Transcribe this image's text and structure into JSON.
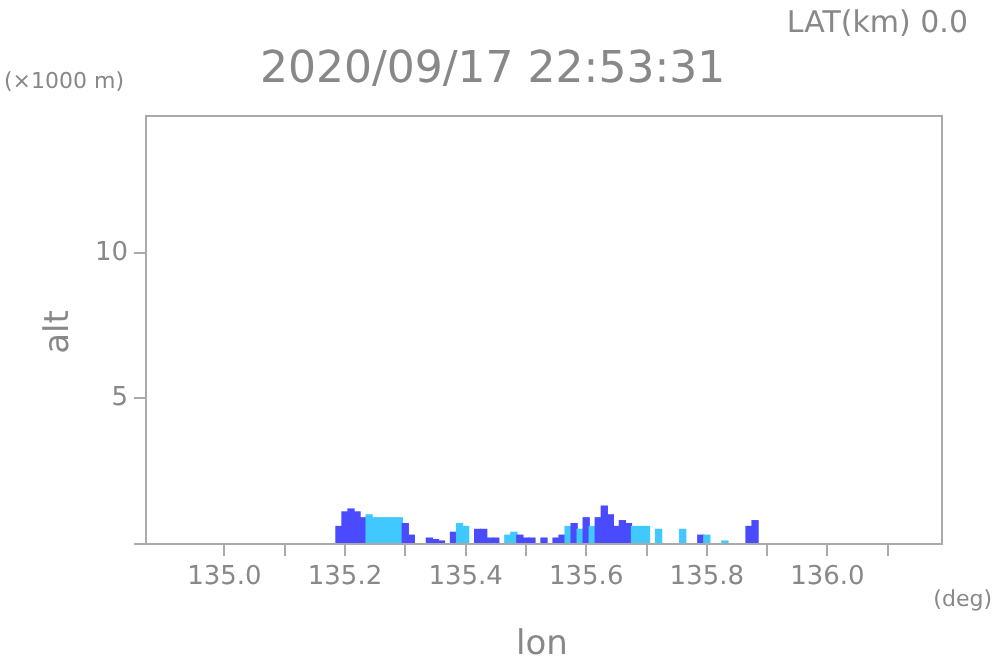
{
  "chart_data": {
    "type": "bar",
    "title": "2020/09/17 22:53:31",
    "subtitle": "LAT(km) 0.0",
    "xlabel": "lon",
    "ylabel": "alt",
    "annotations": [
      "(×1000 m)",
      "(deg)"
    ],
    "x": [
      135.19,
      135.2,
      135.21,
      135.22,
      135.23,
      135.24,
      135.25,
      135.26,
      135.27,
      135.28,
      135.29,
      135.3,
      135.31,
      135.34,
      135.35,
      135.36,
      135.38,
      135.39,
      135.4,
      135.42,
      135.43,
      135.44,
      135.45,
      135.47,
      135.48,
      135.49,
      135.5,
      135.51,
      135.53,
      135.55,
      135.56,
      135.57,
      135.58,
      135.59,
      135.6,
      135.61,
      135.62,
      135.63,
      135.64,
      135.65,
      135.66,
      135.67,
      135.68,
      135.69,
      135.7,
      135.72,
      135.76,
      135.79,
      135.8,
      135.83,
      135.87,
      135.88
    ],
    "values": [
      0.6,
      1.1,
      1.2,
      1.1,
      0.9,
      1.0,
      0.9,
      0.9,
      0.9,
      0.9,
      0.9,
      0.7,
      0.3,
      0.2,
      0.15,
      0.1,
      0.4,
      0.7,
      0.6,
      0.5,
      0.5,
      0.2,
      0.2,
      0.3,
      0.4,
      0.3,
      0.2,
      0.2,
      0.2,
      0.2,
      0.3,
      0.6,
      0.7,
      0.5,
      0.9,
      0.6,
      0.9,
      1.3,
      1.0,
      0.6,
      0.8,
      0.7,
      0.6,
      0.6,
      0.6,
      0.5,
      0.5,
      0.3,
      0.3,
      0.1,
      0.6,
      0.8
    ],
    "colors": [
      "#4a4aff",
      "#4a4aff",
      "#4a4aff",
      "#4a4aff",
      "#4a4aff",
      "#40c8ff",
      "#40c8ff",
      "#40c8ff",
      "#40c8ff",
      "#40c8ff",
      "#40c8ff",
      "#4a4aff",
      "#4a4aff",
      "#4a4aff",
      "#4a4aff",
      "#4a4aff",
      "#4a4aff",
      "#40c8ff",
      "#40c8ff",
      "#4a4aff",
      "#4a4aff",
      "#4a4aff",
      "#4a4aff",
      "#40c8ff",
      "#40c8ff",
      "#4a4aff",
      "#4a4aff",
      "#4a4aff",
      "#4a4aff",
      "#4a4aff",
      "#4a4aff",
      "#40c8ff",
      "#4a4aff",
      "#40c8ff",
      "#4a4aff",
      "#40c8ff",
      "#4a4aff",
      "#4a4aff",
      "#4a4aff",
      "#4a4aff",
      "#4a4aff",
      "#4a4aff",
      "#40c8ff",
      "#40c8ff",
      "#40c8ff",
      "#40c8ff",
      "#40c8ff",
      "#4a4aff",
      "#40c8ff",
      "#40c8ff",
      "#4a4aff",
      "#4a4aff"
    ],
    "xlim": [
      134.87,
      136.19
    ],
    "xticks": [
      {
        "value": 135,
        "label": "135.0"
      },
      {
        "value": 135.1,
        "label": null
      },
      135.2,
      {
        "value": 135.3,
        "label": null
      },
      135.4,
      {
        "value": 135.5,
        "label": null
      },
      135.6,
      {
        "value": 135.7,
        "label": null
      },
      135.8,
      {
        "value": 135.9,
        "label": null
      },
      {
        "value": 136,
        "label": "136.0"
      },
      {
        "value": 136.1,
        "label": null
      }
    ],
    "ylim": [
      0,
      14.7
    ],
    "yticks": [
      {
        "value": 0,
        "label": null
      },
      5,
      10
    ],
    "grid": false,
    "legend": false
  }
}
